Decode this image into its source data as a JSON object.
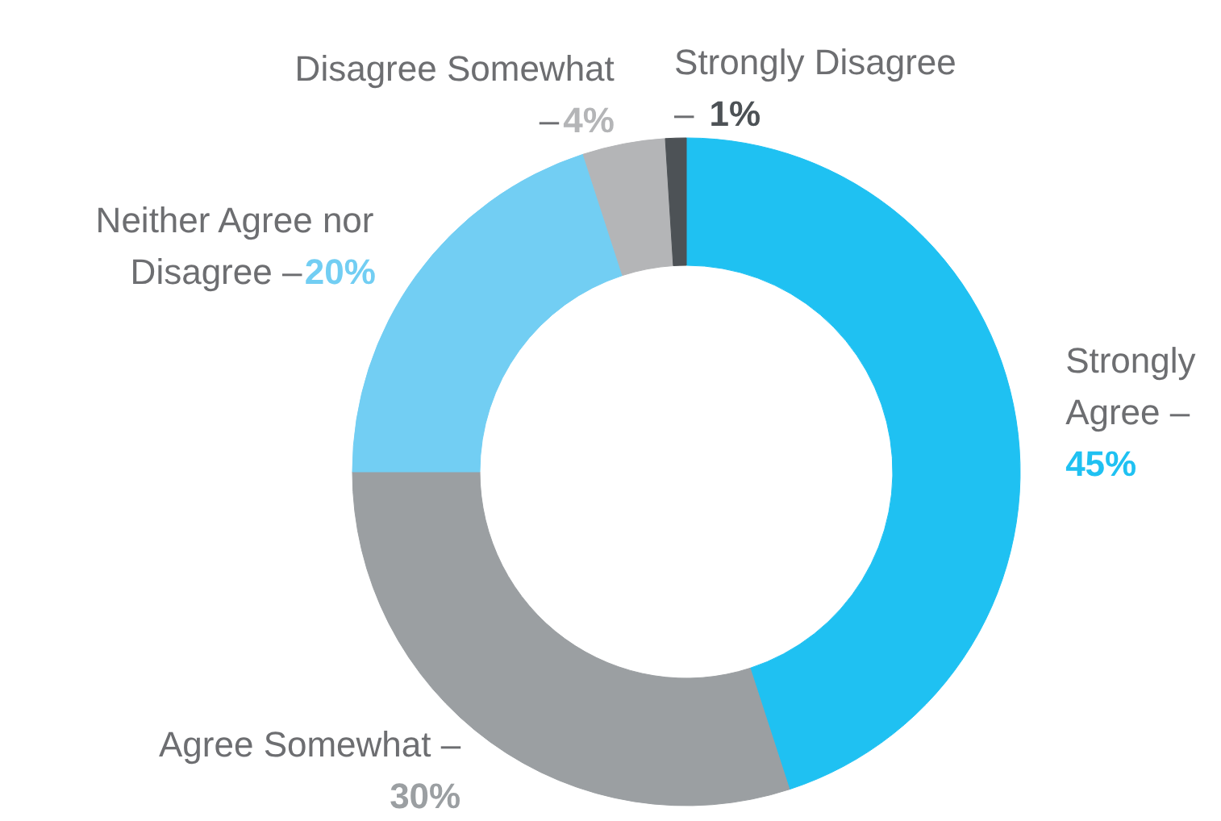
{
  "chart_data": {
    "type": "donut",
    "categories": [
      "Strongly Agree –",
      "Agree Somewhat –",
      "Neither Agree nor Disagree –",
      "Disagree Somewhat –",
      "Strongly Disagree –"
    ],
    "values": [
      45,
      30,
      20,
      4,
      1
    ],
    "colors": [
      "#1fc1f2",
      "#9b9fa2",
      "#72cef3",
      "#b4b5b7",
      "#4d5256"
    ],
    "value_labels": [
      "45%",
      "30%",
      "20%",
      "4%",
      "1%"
    ]
  }
}
